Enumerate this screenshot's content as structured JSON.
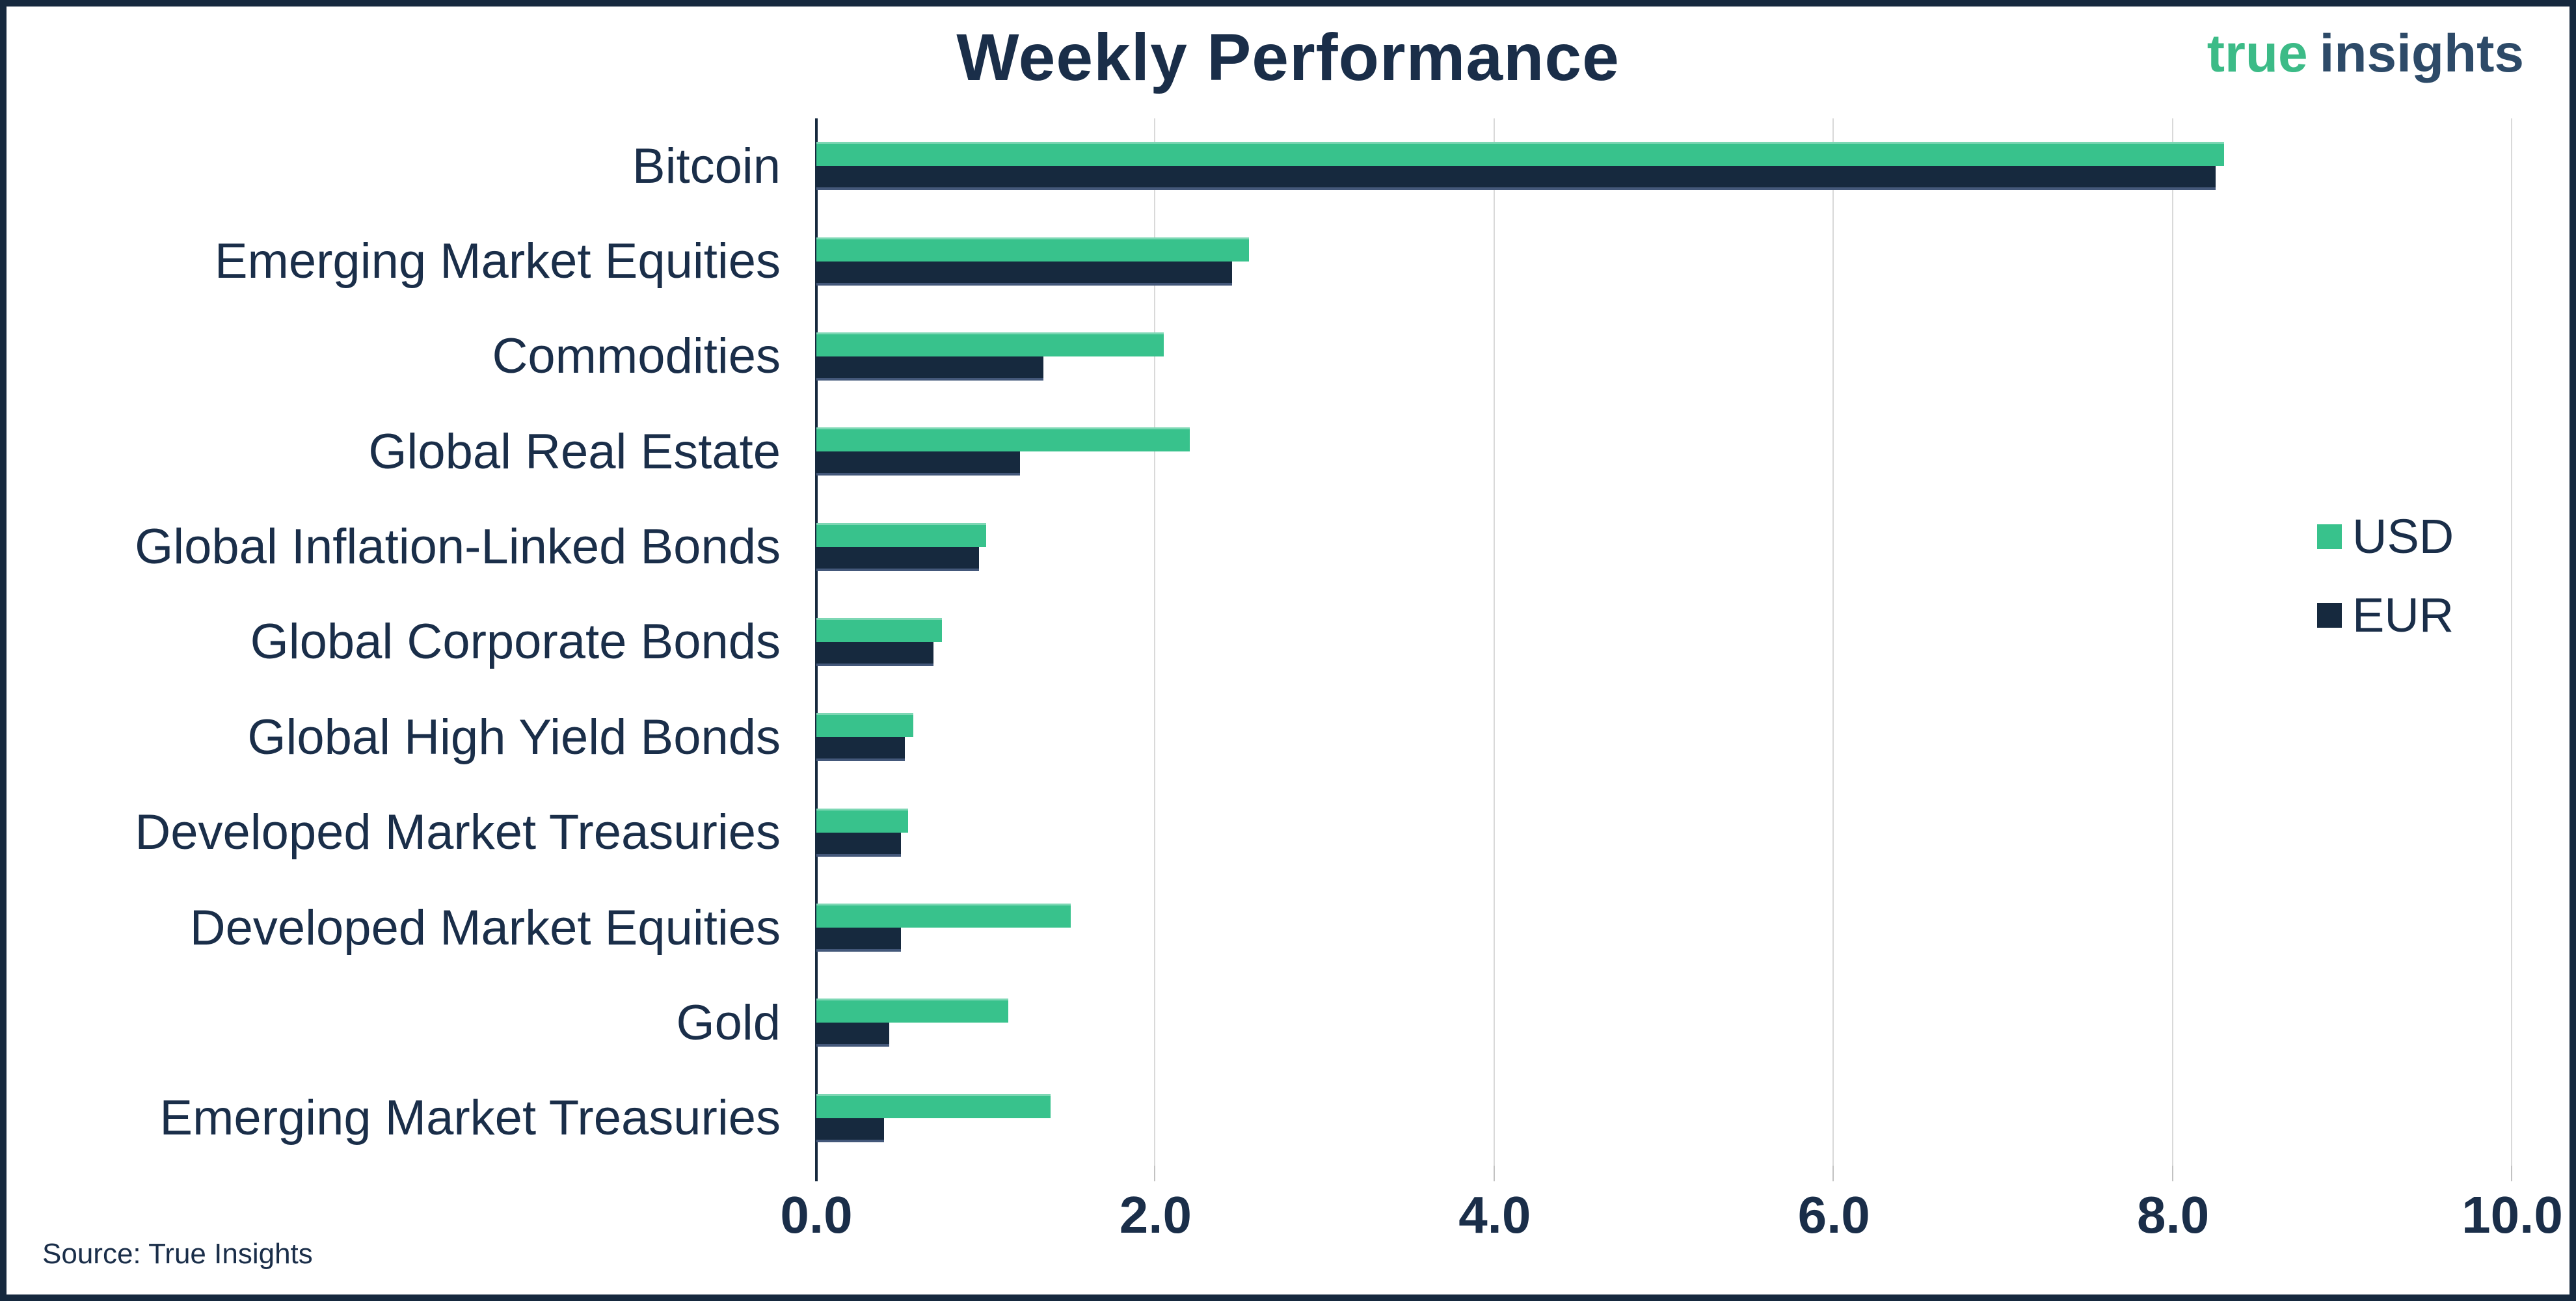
{
  "title": "Weekly Performance",
  "logo": {
    "part1": "true",
    "part2": "insights"
  },
  "source": "Source: True Insights",
  "legend": [
    {
      "label": "USD",
      "color": "#38c28c"
    },
    {
      "label": "EUR",
      "color": "#16293e"
    }
  ],
  "colors": {
    "usd_bar": "#38c28c",
    "eur_bar": "#16293e",
    "text_navy": "#1a2e49",
    "gridline": "#d9d9d9",
    "axis": "#16293e",
    "logo_green": "#3cbb87",
    "logo_navy": "#2d4a68"
  },
  "chart_data": {
    "type": "bar",
    "orientation": "horizontal",
    "title": "Weekly Performance",
    "categories": [
      "Bitcoin",
      "Emerging Market Equities",
      "Commodities",
      "Global Real Estate",
      "Global Inflation-Linked Bonds",
      "Global Corporate Bonds",
      "Global High Yield Bonds",
      "Developed Market Treasuries",
      "Developed Market Equities",
      "Gold",
      "Emerging Market Treasuries"
    ],
    "series": [
      {
        "name": "USD",
        "color": "#38c28c",
        "values": [
          8.3,
          2.55,
          2.05,
          2.2,
          1.0,
          0.74,
          0.57,
          0.54,
          1.5,
          1.13,
          1.38
        ]
      },
      {
        "name": "EUR",
        "color": "#16293e",
        "values": [
          8.25,
          2.45,
          1.34,
          1.2,
          0.96,
          0.69,
          0.52,
          0.5,
          0.5,
          0.43,
          0.4
        ]
      }
    ],
    "xlim": [
      0,
      10
    ],
    "xtick_interval": 2,
    "xticks": [
      "0.0",
      "2.0",
      "4.0",
      "6.0",
      "8.0",
      "10.0"
    ],
    "grid": true,
    "legend_position": "right",
    "source_note": "Source: True Insights"
  }
}
